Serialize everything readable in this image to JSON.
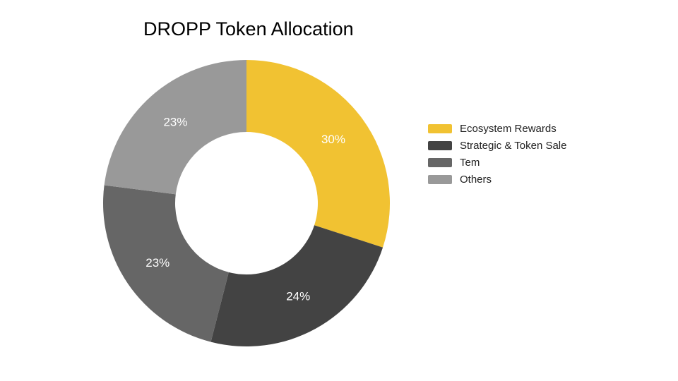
{
  "chart_data": {
    "type": "pie",
    "title": "DROPP Token Allocation",
    "donut": true,
    "slices": [
      {
        "label": "Ecosystem Rewards",
        "value": 30,
        "display": "30%",
        "color": "#F1C232"
      },
      {
        "label": "Strategic & Token Sale",
        "value": 24,
        "display": "24%",
        "color": "#434343"
      },
      {
        "label": "Tem",
        "value": 23,
        "display": "23%",
        "color": "#666666"
      },
      {
        "label": "Others",
        "value": 23,
        "display": "23%",
        "color": "#999999"
      }
    ],
    "legend_position": "right"
  },
  "legend": {
    "items": [
      {
        "label": "Ecosystem Rewards",
        "color": "#F1C232"
      },
      {
        "label": "Strategic & Token Sale",
        "color": "#434343"
      },
      {
        "label": "Tem",
        "color": "#666666"
      },
      {
        "label": "Others",
        "color": "#999999"
      }
    ]
  }
}
